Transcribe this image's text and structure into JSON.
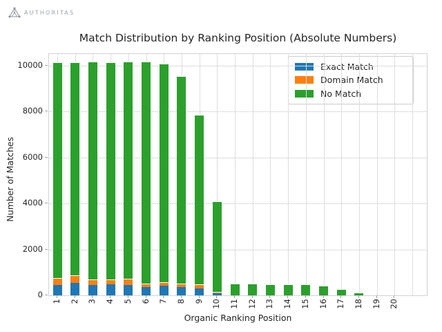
{
  "logo": {
    "brand": "AUTHORITAS"
  },
  "chart_data": {
    "type": "bar",
    "stacked": true,
    "title": "Match Distribution by Ranking Position (Absolute Numbers)",
    "xlabel": "Organic Ranking Position",
    "ylabel": "Number of Matches",
    "categories": [
      "1",
      "2",
      "3",
      "4",
      "5",
      "6",
      "7",
      "8",
      "9",
      "10",
      "11",
      "12",
      "13",
      "14",
      "15",
      "16",
      "17",
      "18",
      "19",
      "20"
    ],
    "series": [
      {
        "name": "Exact Match",
        "color": "#1f77b4",
        "values": [
          450,
          550,
          450,
          480,
          450,
          360,
          420,
          360,
          300,
          80,
          0,
          0,
          0,
          0,
          0,
          0,
          0,
          0,
          0,
          0
        ]
      },
      {
        "name": "Domain Match",
        "color": "#ff7f0e",
        "values": [
          280,
          300,
          200,
          180,
          240,
          120,
          120,
          110,
          140,
          30,
          0,
          0,
          0,
          0,
          0,
          0,
          0,
          0,
          0,
          0
        ]
      },
      {
        "name": "No Match",
        "color": "#2ca02c",
        "values": [
          9390,
          9270,
          9480,
          9460,
          9440,
          9650,
          9510,
          9030,
          7360,
          3940,
          480,
          480,
          450,
          450,
          450,
          390,
          250,
          90,
          0,
          0
        ]
      }
    ],
    "yticks": [
      0,
      2000,
      4000,
      6000,
      8000,
      10000
    ],
    "ylim": [
      0,
      10500
    ],
    "grid": true,
    "legend_position": "upper right"
  }
}
